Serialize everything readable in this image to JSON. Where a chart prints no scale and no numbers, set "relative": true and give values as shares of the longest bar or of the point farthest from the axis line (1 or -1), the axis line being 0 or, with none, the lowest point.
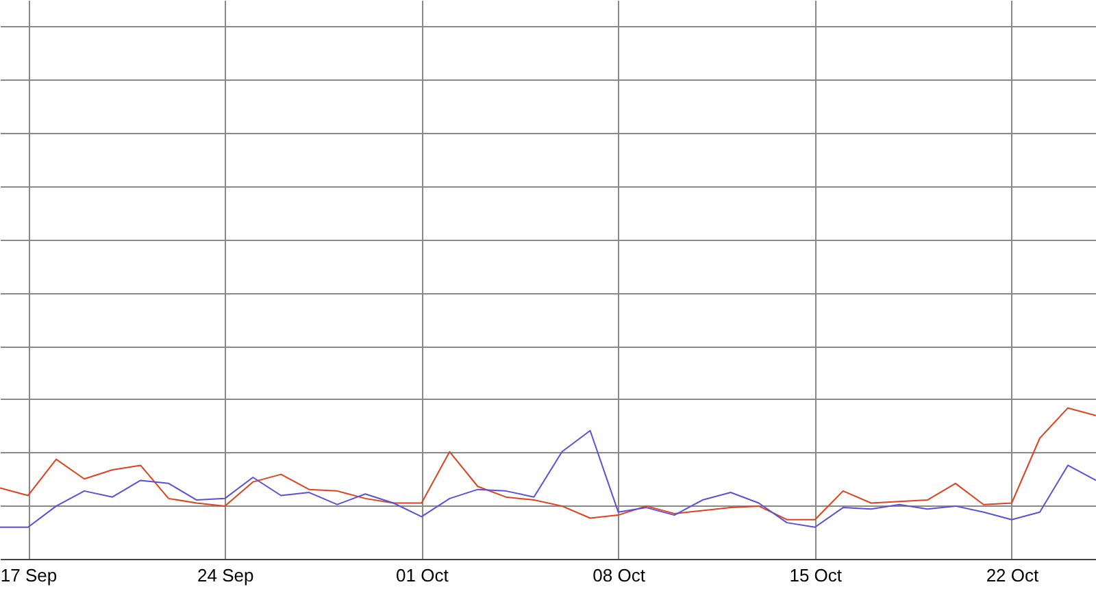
{
  "chart_data": {
    "type": "line",
    "relative": true,
    "grid": true,
    "x": [
      "--09-16",
      "--09-17",
      "--09-18",
      "--09-19",
      "--09-20",
      "--09-21",
      "--09-22",
      "--09-23",
      "--09-24",
      "--09-25",
      "--09-26",
      "--09-27",
      "--09-28",
      "--09-29",
      "--09-30",
      "--10-01",
      "--10-02",
      "--10-03",
      "--10-04",
      "--10-05",
      "--10-06",
      "--10-07",
      "--10-08",
      "--10-09",
      "--10-10",
      "--10-11",
      "--10-12",
      "--10-13",
      "--10-14",
      "--10-15",
      "--10-16",
      "--10-17",
      "--10-18",
      "--10-19",
      "--10-20",
      "--10-21",
      "--10-22",
      "--10-23",
      "--10-24",
      "--10-25"
    ],
    "xlim": [
      "--09-16",
      "--10-25"
    ],
    "xticks": [
      {
        "value": "--09-17",
        "label": "17 Sep"
      },
      {
        "value": "--09-24",
        "label": "24 Sep"
      },
      {
        "value": "--10-01",
        "label": "01 Oct"
      },
      {
        "value": "--10-08",
        "label": "08 Oct"
      },
      {
        "value": "--10-15",
        "label": "15 Oct"
      },
      {
        "value": "--10-22",
        "label": "22 Oct"
      }
    ],
    "series": [
      {
        "color": "#e0401c",
        "values": [
          0.47,
          0.42,
          0.66,
          0.53,
          0.59,
          0.62,
          0.4,
          0.37,
          0.35,
          0.51,
          0.56,
          0.46,
          0.45,
          0.4,
          0.37,
          0.37,
          0.71,
          0.48,
          0.41,
          0.39,
          0.35,
          0.27,
          0.29,
          0.35,
          0.3,
          0.32,
          0.34,
          0.35,
          0.26,
          0.26,
          0.45,
          0.37,
          0.38,
          0.39,
          0.5,
          0.36,
          0.37,
          0.8,
          1,
          0.95
        ]
      },
      {
        "color": "#5a4fd8",
        "values": [
          0.21,
          0.21,
          0.35,
          0.45,
          0.41,
          0.52,
          0.5,
          0.39,
          0.4,
          0.54,
          0.42,
          0.44,
          0.36,
          0.43,
          0.37,
          0.28,
          0.4,
          0.46,
          0.45,
          0.41,
          0.71,
          0.85,
          0.31,
          0.34,
          0.29,
          0.39,
          0.44,
          0.37,
          0.24,
          0.21,
          0.34,
          0.33,
          0.36,
          0.33,
          0.35,
          0.31,
          0.26,
          0.31,
          0.62,
          0.52
        ]
      }
    ]
  }
}
